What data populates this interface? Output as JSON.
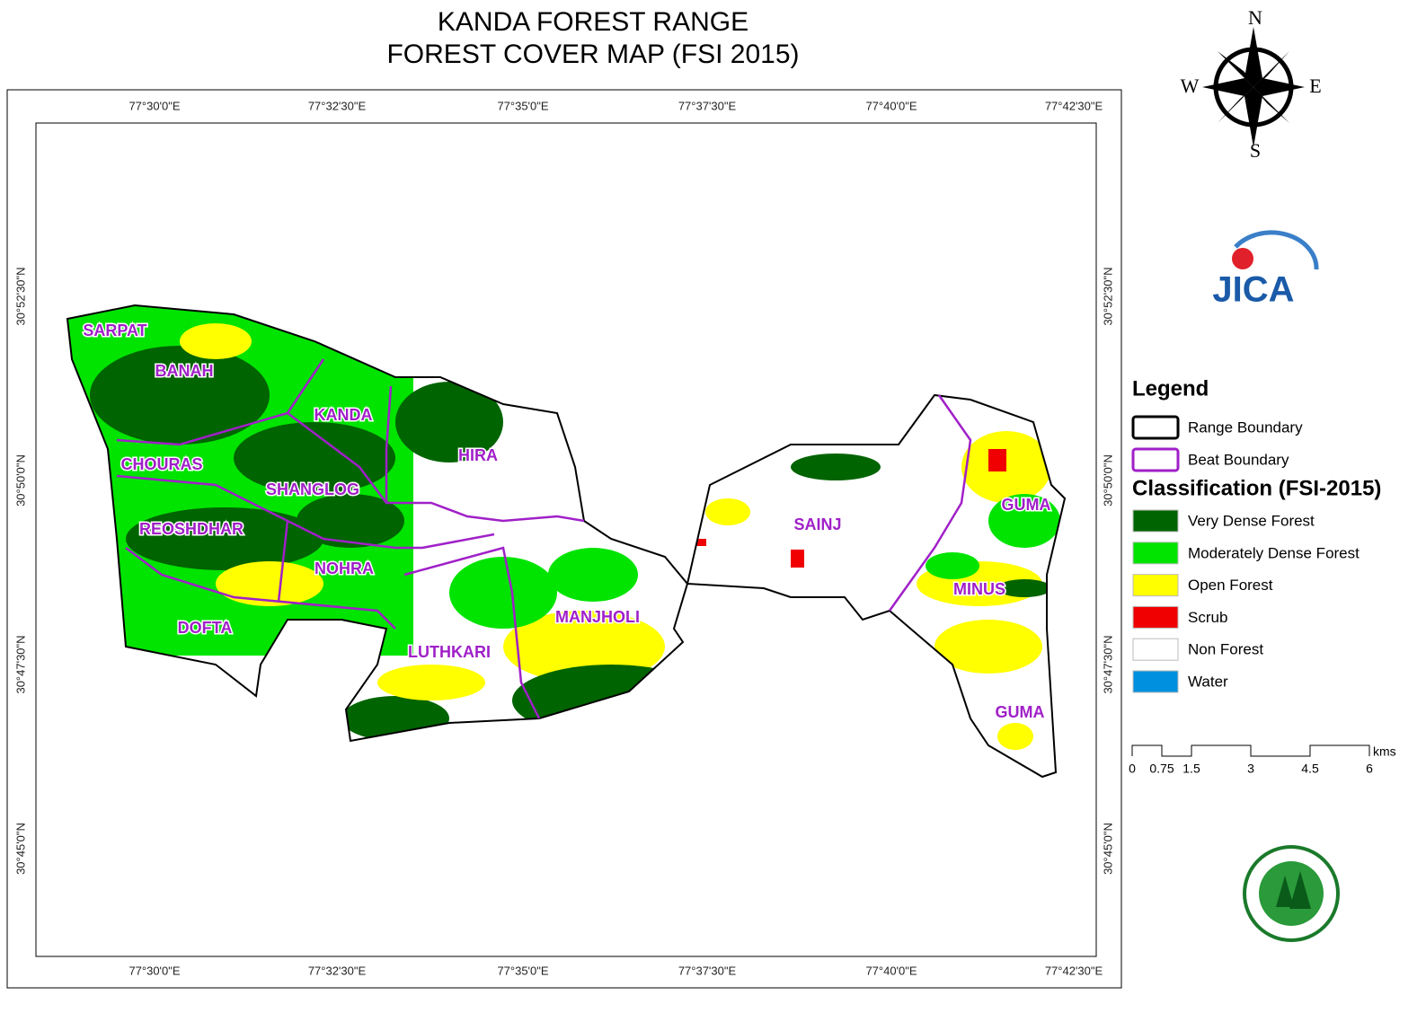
{
  "header": {
    "title_lines": [
      "KANDA FOREST RANGE",
      "FOREST COVER MAP (FSI 2015)"
    ]
  },
  "grid": {
    "longitudes": [
      "77°30'0\"E",
      "77°32'30\"E",
      "77°35'0\"E",
      "77°37'30\"E",
      "77°40'0\"E",
      "77°42'30\"E"
    ],
    "latitudes": [
      "30°52'30\"N",
      "30°50'0\"N",
      "30°47'30\"N",
      "30°45'0\"N"
    ]
  },
  "beats": [
    "SARPAT",
    "BANAH",
    "KANDA",
    "HIRA",
    "CHOURAS",
    "SHANGLOG",
    "REOSHDHAR",
    "NOHRA",
    "DOFTA",
    "LUTHKARI",
    "MANJHOLI",
    "SAINJ",
    "GUMA",
    "MINUS",
    "GUMA"
  ],
  "compass": {
    "n": "N",
    "s": "S",
    "e": "E",
    "w": "W"
  },
  "logo": "JICA",
  "legend": {
    "title": "Legend",
    "boundaries": [
      {
        "label": "Range Boundary",
        "color": "#000000"
      },
      {
        "label": "Beat Boundary",
        "color": "#a020c8"
      }
    ],
    "class_title": "Classification (FSI-2015)",
    "classes": [
      {
        "label": "Very Dense Forest",
        "color": "#006400"
      },
      {
        "label": "Moderately Dense Forest",
        "color": "#00e400"
      },
      {
        "label": "Open Forest",
        "color": "#ffff00"
      },
      {
        "label": "Scrub",
        "color": "#f00000"
      },
      {
        "label": "Non Forest",
        "color": "#ffffff"
      },
      {
        "label": "Water",
        "color": "#0090e0"
      }
    ]
  },
  "scale": {
    "ticks": [
      0,
      0.75,
      1.5,
      3,
      4.5,
      6
    ],
    "unit": "kms"
  }
}
